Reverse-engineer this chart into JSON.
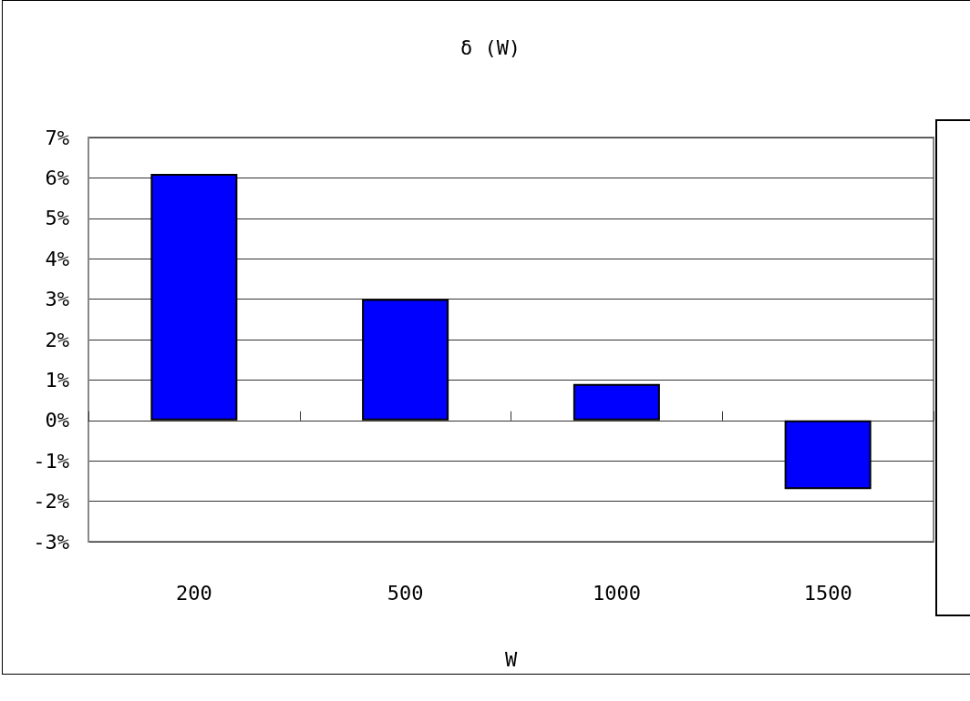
{
  "chart_data": {
    "type": "bar",
    "title": "δ (W)",
    "xlabel": "W",
    "categories": [
      "200",
      "500",
      "1000",
      "1500"
    ],
    "values": [
      6.1,
      3.0,
      0.9,
      -1.7
    ],
    "color": "#0000ff",
    "ylim": [
      -3,
      7
    ],
    "yticks": [
      {
        "value": -3,
        "label": "-3%"
      },
      {
        "value": -2,
        "label": "-2%"
      },
      {
        "value": -1,
        "label": "-1%"
      },
      {
        "value": 0,
        "label": "0%"
      },
      {
        "value": 1,
        "label": "1%"
      },
      {
        "value": 2,
        "label": "2%"
      },
      {
        "value": 3,
        "label": "3%"
      },
      {
        "value": 4,
        "label": "4%"
      },
      {
        "value": 5,
        "label": "5%"
      },
      {
        "value": 6,
        "label": "6%"
      },
      {
        "value": 7,
        "label": "7%"
      }
    ],
    "grid": "y"
  }
}
